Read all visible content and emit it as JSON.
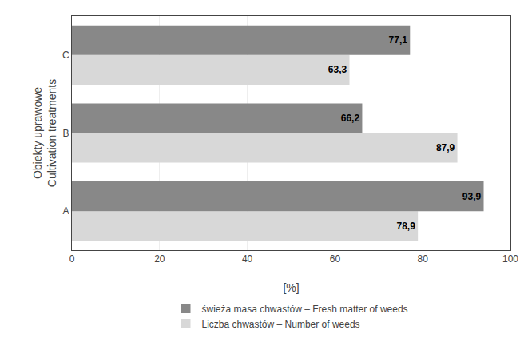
{
  "chart_data": {
    "type": "bar",
    "orientation": "horizontal",
    "categories": [
      "A",
      "B",
      "C"
    ],
    "series": [
      {
        "name": "świeża masa chwastów – Fresh matter of weeds",
        "color": "#888888",
        "values": [
          93.9,
          66.2,
          77.1
        ],
        "value_labels": [
          "93,9",
          "66,2",
          "77,1"
        ]
      },
      {
        "name": "Liczba chwastów – Number of weeds",
        "color": "#d8d8d8",
        "values": [
          78.9,
          87.9,
          63.3
        ],
        "value_labels": [
          "78,9",
          "87,9",
          "63,3"
        ]
      }
    ],
    "xlabel": "[%]",
    "ylabel": "Obiekty uprawowe\nCultivation treatments",
    "xlim": [
      0,
      100
    ],
    "xticks": [
      0,
      20,
      40,
      60,
      80,
      100
    ],
    "grid": true,
    "data_labels": true,
    "legend": "bottom"
  }
}
